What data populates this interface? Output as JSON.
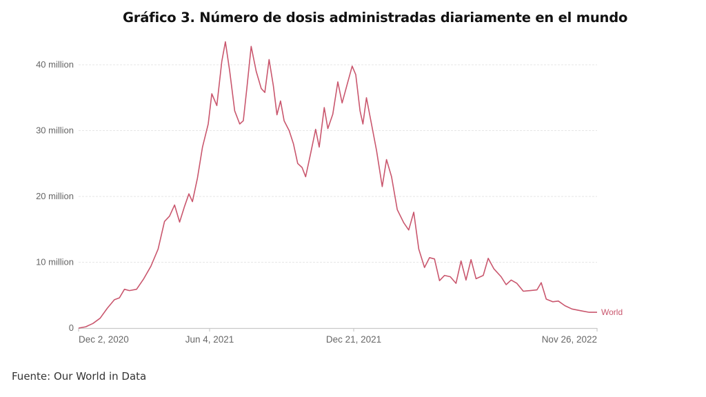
{
  "title": "Gráfico 3. Número de dosis administradas diariamente en el mundo",
  "source": "Fuente: Our World in Data",
  "colors": {
    "line": "#c9566d",
    "grid": "#e6e6e6",
    "axis": "#c8c8c8",
    "tick_text": "#666666"
  },
  "chart_data": {
    "type": "line",
    "title": "Gráfico 3. Número de dosis administradas diariamente en el mundo",
    "xlabel": "",
    "ylabel": "",
    "ylim": [
      0,
      44000000
    ],
    "yticks": [
      0,
      10000000,
      20000000,
      30000000,
      40000000
    ],
    "ytick_labels": [
      "0",
      "10 million",
      "20 million",
      "30 million",
      "40 million"
    ],
    "xtick_labels": [
      "Dec 2, 2020",
      "Jun 4, 2021",
      "Dec 21, 2021",
      "Nov 26, 2022"
    ],
    "x_range": [
      "2020-12-02",
      "2022-11-26"
    ],
    "grid": true,
    "legend": {
      "position": "inline-end",
      "entries": [
        "World"
      ]
    },
    "series": [
      {
        "name": "World",
        "unit": "million doses per day",
        "points": [
          [
            "2020-12-02",
            0.0
          ],
          [
            "2020-12-12",
            0.2
          ],
          [
            "2020-12-22",
            0.7
          ],
          [
            "2021-01-01",
            1.5
          ],
          [
            "2021-01-11",
            3.0
          ],
          [
            "2021-01-21",
            4.3
          ],
          [
            "2021-01-28",
            4.6
          ],
          [
            "2021-02-04",
            5.9
          ],
          [
            "2021-02-11",
            5.7
          ],
          [
            "2021-02-21",
            5.9
          ],
          [
            "2021-03-03",
            7.5
          ],
          [
            "2021-03-13",
            9.4
          ],
          [
            "2021-03-23",
            12.0
          ],
          [
            "2021-04-01",
            16.2
          ],
          [
            "2021-04-08",
            17.0
          ],
          [
            "2021-04-15",
            18.7
          ],
          [
            "2021-04-22",
            16.1
          ],
          [
            "2021-04-29",
            18.5
          ],
          [
            "2021-05-05",
            20.4
          ],
          [
            "2021-05-10",
            19.2
          ],
          [
            "2021-05-17",
            22.8
          ],
          [
            "2021-05-24",
            27.5
          ],
          [
            "2021-06-01",
            31.0
          ],
          [
            "2021-06-06",
            35.6
          ],
          [
            "2021-06-13",
            33.8
          ],
          [
            "2021-06-20",
            40.5
          ],
          [
            "2021-06-25",
            43.5
          ],
          [
            "2021-07-01",
            39.0
          ],
          [
            "2021-07-08",
            33.0
          ],
          [
            "2021-07-15",
            31.0
          ],
          [
            "2021-07-20",
            31.5
          ],
          [
            "2021-07-25",
            36.5
          ],
          [
            "2021-07-31",
            42.8
          ],
          [
            "2021-08-07",
            39.0
          ],
          [
            "2021-08-14",
            36.4
          ],
          [
            "2021-08-19",
            35.8
          ],
          [
            "2021-08-25",
            40.8
          ],
          [
            "2021-08-31",
            36.8
          ],
          [
            "2021-09-05",
            32.4
          ],
          [
            "2021-09-10",
            34.5
          ],
          [
            "2021-09-15",
            31.5
          ],
          [
            "2021-09-22",
            30.0
          ],
          [
            "2021-09-28",
            28.0
          ],
          [
            "2021-10-04",
            25.0
          ],
          [
            "2021-10-10",
            24.4
          ],
          [
            "2021-10-15",
            23.0
          ],
          [
            "2021-10-22",
            26.5
          ],
          [
            "2021-10-29",
            30.2
          ],
          [
            "2021-11-03",
            27.5
          ],
          [
            "2021-11-10",
            33.5
          ],
          [
            "2021-11-15",
            30.3
          ],
          [
            "2021-11-22",
            32.5
          ],
          [
            "2021-11-29",
            37.4
          ],
          [
            "2021-12-05",
            34.2
          ],
          [
            "2021-12-12",
            37.0
          ],
          [
            "2021-12-19",
            39.8
          ],
          [
            "2021-12-24",
            38.5
          ],
          [
            "2021-12-30",
            33.0
          ],
          [
            "2022-01-03",
            31.0
          ],
          [
            "2022-01-08",
            35.0
          ],
          [
            "2022-01-15",
            31.0
          ],
          [
            "2022-01-22",
            27.0
          ],
          [
            "2022-01-30",
            21.5
          ],
          [
            "2022-02-05",
            25.6
          ],
          [
            "2022-02-12",
            23.0
          ],
          [
            "2022-02-20",
            18.0
          ],
          [
            "2022-03-01",
            16.0
          ],
          [
            "2022-03-08",
            14.9
          ],
          [
            "2022-03-15",
            17.6
          ],
          [
            "2022-03-22",
            12.0
          ],
          [
            "2022-03-30",
            9.2
          ],
          [
            "2022-04-06",
            10.7
          ],
          [
            "2022-04-13",
            10.5
          ],
          [
            "2022-04-20",
            7.2
          ],
          [
            "2022-04-27",
            8.0
          ],
          [
            "2022-05-05",
            7.8
          ],
          [
            "2022-05-13",
            6.8
          ],
          [
            "2022-05-20",
            10.2
          ],
          [
            "2022-05-27",
            7.3
          ],
          [
            "2022-06-03",
            10.4
          ],
          [
            "2022-06-10",
            7.5
          ],
          [
            "2022-06-20",
            8.0
          ],
          [
            "2022-06-27",
            10.6
          ],
          [
            "2022-07-05",
            9.0
          ],
          [
            "2022-07-15",
            7.8
          ],
          [
            "2022-07-22",
            6.6
          ],
          [
            "2022-07-29",
            7.3
          ],
          [
            "2022-08-06",
            6.8
          ],
          [
            "2022-08-15",
            5.6
          ],
          [
            "2022-08-25",
            5.7
          ],
          [
            "2022-09-03",
            5.8
          ],
          [
            "2022-09-09",
            6.9
          ],
          [
            "2022-09-16",
            4.4
          ],
          [
            "2022-09-25",
            4.0
          ],
          [
            "2022-10-03",
            4.1
          ],
          [
            "2022-10-12",
            3.4
          ],
          [
            "2022-10-22",
            2.9
          ],
          [
            "2022-11-05",
            2.6
          ],
          [
            "2022-11-15",
            2.4
          ],
          [
            "2022-11-26",
            2.4
          ]
        ]
      }
    ]
  }
}
